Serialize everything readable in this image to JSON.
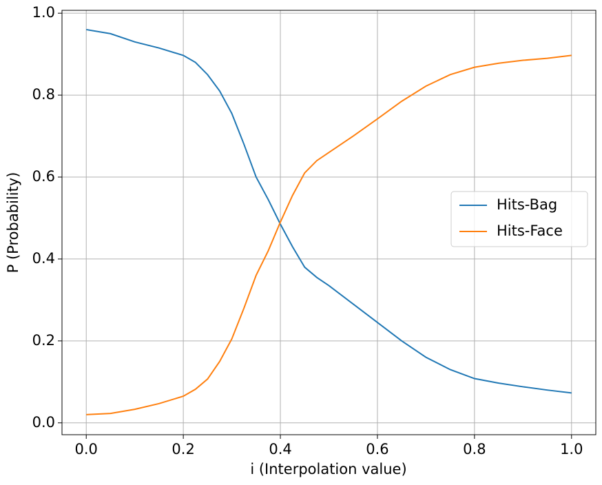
{
  "chart_data": {
    "type": "line",
    "x_label": "i (Interpolation value)",
    "y_label": "P (Probability)",
    "x": [
      0,
      0.05,
      0.1,
      0.15,
      0.2,
      0.225,
      0.25,
      0.275,
      0.3,
      0.325,
      0.35,
      0.375,
      0.4,
      0.425,
      0.45,
      0.475,
      0.5,
      0.55,
      0.6,
      0.65,
      0.7,
      0.75,
      0.8,
      0.85,
      0.9,
      0.95,
      1.0
    ],
    "series": [
      {
        "name": "Hits-Bag",
        "color": "#1f77b4",
        "values": [
          0.96,
          0.95,
          0.93,
          0.915,
          0.897,
          0.88,
          0.85,
          0.81,
          0.755,
          0.68,
          0.6,
          0.545,
          0.485,
          0.43,
          0.38,
          0.355,
          0.335,
          0.29,
          0.245,
          0.2,
          0.16,
          0.13,
          0.108,
          0.097,
          0.088,
          0.08,
          0.073
        ]
      },
      {
        "name": "Hits-Face",
        "color": "#ff7f0e",
        "values": [
          0.02,
          0.023,
          0.033,
          0.047,
          0.065,
          0.082,
          0.107,
          0.15,
          0.205,
          0.28,
          0.36,
          0.42,
          0.49,
          0.555,
          0.61,
          0.64,
          0.66,
          0.7,
          0.742,
          0.785,
          0.822,
          0.85,
          0.868,
          0.878,
          0.885,
          0.89,
          0.897
        ]
      }
    ],
    "xlim": [
      -0.05,
      1.05
    ],
    "ylim": [
      -0.029,
      1.007
    ],
    "xticks": [
      {
        "value": 0,
        "label": "0.0"
      },
      0.2,
      0.4,
      0.6,
      0.8,
      {
        "value": 1,
        "label": "1.0"
      }
    ],
    "yticks": [
      {
        "value": 0,
        "label": "0.0"
      },
      0.2,
      0.4,
      0.6,
      0.8,
      {
        "value": 1,
        "label": "1.0"
      }
    ],
    "grid": true,
    "legend": "right"
  }
}
